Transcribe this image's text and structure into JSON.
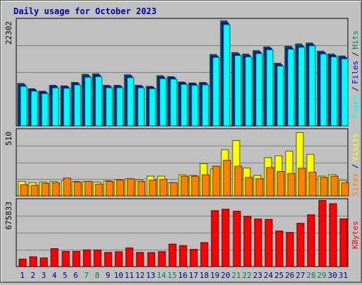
{
  "chart_data": {
    "type": "bar",
    "title": "Daily usage for October 2023",
    "categories": [
      "1",
      "2",
      "3",
      "4",
      "5",
      "6",
      "7",
      "8",
      "9",
      "10",
      "11",
      "12",
      "13",
      "14",
      "15",
      "16",
      "17",
      "18",
      "19",
      "20",
      "21",
      "22",
      "23",
      "24",
      "25",
      "26",
      "27",
      "28",
      "29",
      "30",
      "31"
    ],
    "weekend_days": [
      "7",
      "8",
      "14",
      "15",
      "21",
      "22",
      "28",
      "29"
    ],
    "panels": [
      {
        "name": "hits-panel",
        "max_label": "22302",
        "ylim": [
          0,
          22302
        ],
        "legend": [
          "Pages",
          "Files",
          "Hits"
        ],
        "series": [
          {
            "name": "Hits",
            "color": "#00805c",
            "values": [
              8800,
              7700,
              7200,
              8400,
              8300,
              9000,
              10700,
              10800,
              8400,
              8400,
              10600,
              8400,
              8200,
              10400,
              10200,
              9100,
              8900,
              9000,
              14800,
              21800,
              15200,
              14900,
              15600,
              16400,
              13000,
              16500,
              17000,
              17200,
              15500,
              14900,
              14500
            ]
          },
          {
            "name": "Files",
            "color": "#0000ff",
            "values": [
              8500,
              7500,
              7000,
              8200,
              8100,
              8800,
              10400,
              10500,
              8200,
              8200,
              10300,
              8200,
              8000,
              10100,
              10000,
              8900,
              8700,
              8800,
              14500,
              21400,
              14900,
              14600,
              15300,
              16100,
              12700,
              16200,
              16600,
              16900,
              15200,
              14600,
              14200
            ]
          },
          {
            "name": "Pages",
            "color": "#00ffff",
            "values": [
              8200,
              7200,
              6700,
              7900,
              7800,
              8500,
              10100,
              10200,
              7900,
              7900,
              10000,
              7900,
              7700,
              9800,
              9700,
              8600,
              8400,
              8500,
              14200,
              21000,
              14600,
              14300,
              15000,
              15800,
              12400,
              15900,
              16300,
              16600,
              14900,
              14300,
              13900
            ]
          }
        ]
      },
      {
        "name": "visits-panel",
        "max_label": "510",
        "ylim": [
          0,
          510
        ],
        "legend": [
          "Sites",
          "Visits"
        ],
        "series": [
          {
            "name": "Visits",
            "color": "#ffff00",
            "values": [
              110,
              100,
              105,
              110,
              115,
              110,
              110,
              105,
              115,
              125,
              130,
              120,
              150,
              150,
              100,
              160,
              155,
              245,
              205,
              350,
              420,
              212,
              155,
              290,
              305,
              340,
              480,
              315,
              150,
              162,
              115
            ]
          },
          {
            "name": "Sites",
            "color": "#ff8000",
            "values": [
              85,
              80,
              95,
              100,
              135,
              105,
              110,
              90,
              110,
              120,
              130,
              110,
              120,
              125,
              100,
              150,
              150,
              160,
              225,
              270,
              225,
              140,
              130,
              215,
              185,
              170,
              210,
              180,
              140,
              150,
              100
            ]
          }
        ]
      },
      {
        "name": "kbytes-panel",
        "max_label": "675833",
        "ylim": [
          0,
          675833
        ],
        "legend": [
          "KBytes"
        ],
        "series": [
          {
            "name": "KBytes",
            "color": "#ff0000",
            "values": [
              75000,
              98000,
              86000,
              179000,
              152000,
              152000,
              166000,
              166000,
              141000,
              148000,
              186000,
              141000,
              140000,
              149000,
              224000,
              209000,
              172000,
              239000,
              557000,
              571000,
              551000,
              500000,
              474000,
              470000,
              354000,
              340000,
              431000,
              516000,
              659000,
              626000,
              475000
            ]
          }
        ]
      }
    ]
  }
}
